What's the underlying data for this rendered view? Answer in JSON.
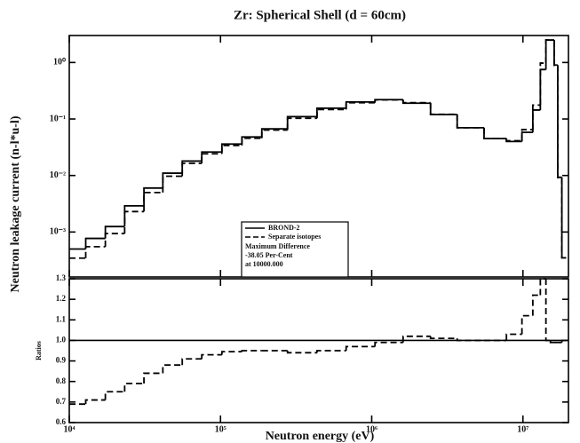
{
  "chart_data": [
    {
      "type": "line",
      "title": "Zr:  Spherical Shell (d = 60cm)",
      "ylabel": "Neutron leakage current (n-l*u-l)",
      "xscale": "log",
      "yscale": "log",
      "drawstyle": "steps-mid",
      "xlim": [
        10000,
        20000000
      ],
      "ylim": [
        0.00016,
        3
      ],
      "yticks": [
        {
          "value": 0.001,
          "label": "10⁻³"
        },
        {
          "value": 0.01,
          "label": "10⁻²"
        },
        {
          "value": 0.1,
          "label": "10⁻¹"
        },
        {
          "value": 1,
          "label": "10⁰"
        }
      ],
      "x": [
        11000,
        15000,
        20000,
        27000,
        36000,
        48000,
        65000,
        87000,
        120000,
        160000,
        220000,
        350000,
        540000,
        850000,
        1300000,
        2000000,
        3000000,
        4500000,
        6800000,
        8900000,
        10900000,
        12400000,
        13700000,
        14700000,
        15700000,
        16500000,
        17500000,
        18700000
      ],
      "series": [
        {
          "name": "BROND-2",
          "color": "#000000",
          "linestyle": "solid",
          "values": [
            0.0005,
            0.00077,
            0.00125,
            0.0029,
            0.006,
            0.011,
            0.018,
            0.026,
            0.036,
            0.048,
            0.067,
            0.11,
            0.155,
            0.2,
            0.22,
            0.19,
            0.12,
            0.07,
            0.045,
            0.04,
            0.058,
            0.144,
            0.75,
            2.5,
            2.5,
            0.9,
            0.0093,
            0.00035
          ]
        },
        {
          "name": "Separate isotopes",
          "color": "#000000",
          "linestyle": "dashed",
          "values": [
            0.000345,
            0.00055,
            0.00094,
            0.0023,
            0.005,
            0.0097,
            0.0164,
            0.0242,
            0.034,
            0.0456,
            0.0637,
            0.103,
            0.147,
            0.194,
            0.218,
            0.194,
            0.121,
            0.07,
            0.045,
            0.0412,
            0.065,
            0.176,
            0.975,
            2.5,
            2.48,
            0.89,
            0.0092,
            0.00035
          ]
        }
      ],
      "annotation": [
        "Maximum Difference",
        "-38.05  Per-Cent",
        "at 10000.000"
      ]
    },
    {
      "type": "line",
      "ylabel": "Ratios",
      "xlabel": "Neutron energy (eV)",
      "xscale": "log",
      "drawstyle": "steps-mid",
      "xlim": [
        10000,
        20000000
      ],
      "ylim": [
        0.6,
        1.3
      ],
      "xticks": [
        {
          "value": 10000,
          "label": "10⁴"
        },
        {
          "value": 100000,
          "label": "10⁵"
        },
        {
          "value": 1000000,
          "label": "10⁶"
        },
        {
          "value": 10000000,
          "label": "10⁷"
        }
      ],
      "yticks": [
        0.6,
        0.7,
        0.8,
        0.9,
        {
          "value": 1,
          "label": "1.0"
        },
        1.1,
        1.2,
        1.3
      ],
      "reference_line": 1,
      "x": [
        11000,
        15000,
        20000,
        27000,
        36000,
        48000,
        65000,
        87000,
        120000,
        160000,
        220000,
        350000,
        540000,
        850000,
        1300000,
        2000000,
        3000000,
        4500000,
        6800000,
        8900000,
        10900000,
        12400000,
        13700000,
        14700000,
        15700000,
        16500000,
        17500000,
        18700000
      ],
      "series": [
        {
          "color": "#000000",
          "linestyle": "dashed",
          "values": [
            0.69,
            0.71,
            0.75,
            0.79,
            0.84,
            0.88,
            0.91,
            0.93,
            0.945,
            0.95,
            0.95,
            0.94,
            0.95,
            0.97,
            0.99,
            1.02,
            1.01,
            1.0,
            1.0,
            1.03,
            1.12,
            1.22,
            1.3,
            1.0,
            0.99,
            0.99,
            0.99,
            1.0
          ]
        }
      ]
    }
  ]
}
